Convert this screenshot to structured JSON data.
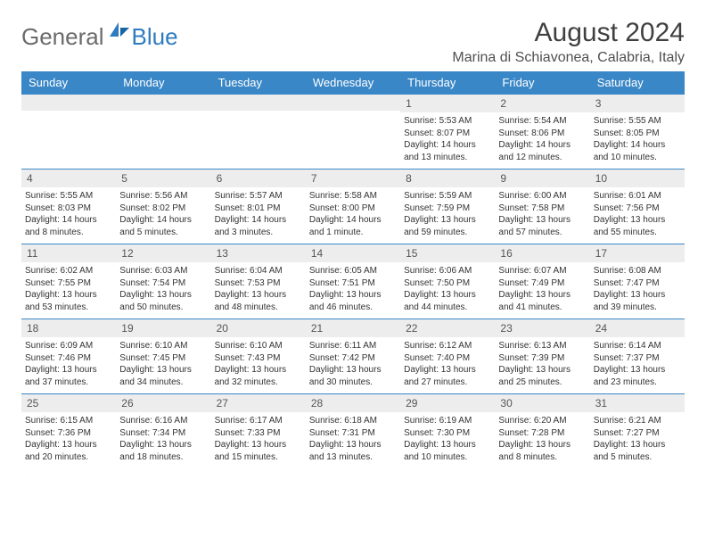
{
  "logo": {
    "part1": "General",
    "part2": "Blue"
  },
  "title": "August 2024",
  "location": "Marina di Schiavonea, Calabria, Italy",
  "colors": {
    "header_bg": "#3a87c7",
    "header_text": "#ffffff",
    "daynum_bg": "#ededed",
    "border": "#3a87c7"
  },
  "day_headers": [
    "Sunday",
    "Monday",
    "Tuesday",
    "Wednesday",
    "Thursday",
    "Friday",
    "Saturday"
  ],
  "weeks": [
    [
      {
        "n": "",
        "sr": "",
        "ss": "",
        "dl": ""
      },
      {
        "n": "",
        "sr": "",
        "ss": "",
        "dl": ""
      },
      {
        "n": "",
        "sr": "",
        "ss": "",
        "dl": ""
      },
      {
        "n": "",
        "sr": "",
        "ss": "",
        "dl": ""
      },
      {
        "n": "1",
        "sr": "Sunrise: 5:53 AM",
        "ss": "Sunset: 8:07 PM",
        "dl": "Daylight: 14 hours and 13 minutes."
      },
      {
        "n": "2",
        "sr": "Sunrise: 5:54 AM",
        "ss": "Sunset: 8:06 PM",
        "dl": "Daylight: 14 hours and 12 minutes."
      },
      {
        "n": "3",
        "sr": "Sunrise: 5:55 AM",
        "ss": "Sunset: 8:05 PM",
        "dl": "Daylight: 14 hours and 10 minutes."
      }
    ],
    [
      {
        "n": "4",
        "sr": "Sunrise: 5:55 AM",
        "ss": "Sunset: 8:03 PM",
        "dl": "Daylight: 14 hours and 8 minutes."
      },
      {
        "n": "5",
        "sr": "Sunrise: 5:56 AM",
        "ss": "Sunset: 8:02 PM",
        "dl": "Daylight: 14 hours and 5 minutes."
      },
      {
        "n": "6",
        "sr": "Sunrise: 5:57 AM",
        "ss": "Sunset: 8:01 PM",
        "dl": "Daylight: 14 hours and 3 minutes."
      },
      {
        "n": "7",
        "sr": "Sunrise: 5:58 AM",
        "ss": "Sunset: 8:00 PM",
        "dl": "Daylight: 14 hours and 1 minute."
      },
      {
        "n": "8",
        "sr": "Sunrise: 5:59 AM",
        "ss": "Sunset: 7:59 PM",
        "dl": "Daylight: 13 hours and 59 minutes."
      },
      {
        "n": "9",
        "sr": "Sunrise: 6:00 AM",
        "ss": "Sunset: 7:58 PM",
        "dl": "Daylight: 13 hours and 57 minutes."
      },
      {
        "n": "10",
        "sr": "Sunrise: 6:01 AM",
        "ss": "Sunset: 7:56 PM",
        "dl": "Daylight: 13 hours and 55 minutes."
      }
    ],
    [
      {
        "n": "11",
        "sr": "Sunrise: 6:02 AM",
        "ss": "Sunset: 7:55 PM",
        "dl": "Daylight: 13 hours and 53 minutes."
      },
      {
        "n": "12",
        "sr": "Sunrise: 6:03 AM",
        "ss": "Sunset: 7:54 PM",
        "dl": "Daylight: 13 hours and 50 minutes."
      },
      {
        "n": "13",
        "sr": "Sunrise: 6:04 AM",
        "ss": "Sunset: 7:53 PM",
        "dl": "Daylight: 13 hours and 48 minutes."
      },
      {
        "n": "14",
        "sr": "Sunrise: 6:05 AM",
        "ss": "Sunset: 7:51 PM",
        "dl": "Daylight: 13 hours and 46 minutes."
      },
      {
        "n": "15",
        "sr": "Sunrise: 6:06 AM",
        "ss": "Sunset: 7:50 PM",
        "dl": "Daylight: 13 hours and 44 minutes."
      },
      {
        "n": "16",
        "sr": "Sunrise: 6:07 AM",
        "ss": "Sunset: 7:49 PM",
        "dl": "Daylight: 13 hours and 41 minutes."
      },
      {
        "n": "17",
        "sr": "Sunrise: 6:08 AM",
        "ss": "Sunset: 7:47 PM",
        "dl": "Daylight: 13 hours and 39 minutes."
      }
    ],
    [
      {
        "n": "18",
        "sr": "Sunrise: 6:09 AM",
        "ss": "Sunset: 7:46 PM",
        "dl": "Daylight: 13 hours and 37 minutes."
      },
      {
        "n": "19",
        "sr": "Sunrise: 6:10 AM",
        "ss": "Sunset: 7:45 PM",
        "dl": "Daylight: 13 hours and 34 minutes."
      },
      {
        "n": "20",
        "sr": "Sunrise: 6:10 AM",
        "ss": "Sunset: 7:43 PM",
        "dl": "Daylight: 13 hours and 32 minutes."
      },
      {
        "n": "21",
        "sr": "Sunrise: 6:11 AM",
        "ss": "Sunset: 7:42 PM",
        "dl": "Daylight: 13 hours and 30 minutes."
      },
      {
        "n": "22",
        "sr": "Sunrise: 6:12 AM",
        "ss": "Sunset: 7:40 PM",
        "dl": "Daylight: 13 hours and 27 minutes."
      },
      {
        "n": "23",
        "sr": "Sunrise: 6:13 AM",
        "ss": "Sunset: 7:39 PM",
        "dl": "Daylight: 13 hours and 25 minutes."
      },
      {
        "n": "24",
        "sr": "Sunrise: 6:14 AM",
        "ss": "Sunset: 7:37 PM",
        "dl": "Daylight: 13 hours and 23 minutes."
      }
    ],
    [
      {
        "n": "25",
        "sr": "Sunrise: 6:15 AM",
        "ss": "Sunset: 7:36 PM",
        "dl": "Daylight: 13 hours and 20 minutes."
      },
      {
        "n": "26",
        "sr": "Sunrise: 6:16 AM",
        "ss": "Sunset: 7:34 PM",
        "dl": "Daylight: 13 hours and 18 minutes."
      },
      {
        "n": "27",
        "sr": "Sunrise: 6:17 AM",
        "ss": "Sunset: 7:33 PM",
        "dl": "Daylight: 13 hours and 15 minutes."
      },
      {
        "n": "28",
        "sr": "Sunrise: 6:18 AM",
        "ss": "Sunset: 7:31 PM",
        "dl": "Daylight: 13 hours and 13 minutes."
      },
      {
        "n": "29",
        "sr": "Sunrise: 6:19 AM",
        "ss": "Sunset: 7:30 PM",
        "dl": "Daylight: 13 hours and 10 minutes."
      },
      {
        "n": "30",
        "sr": "Sunrise: 6:20 AM",
        "ss": "Sunset: 7:28 PM",
        "dl": "Daylight: 13 hours and 8 minutes."
      },
      {
        "n": "31",
        "sr": "Sunrise: 6:21 AM",
        "ss": "Sunset: 7:27 PM",
        "dl": "Daylight: 13 hours and 5 minutes."
      }
    ]
  ]
}
